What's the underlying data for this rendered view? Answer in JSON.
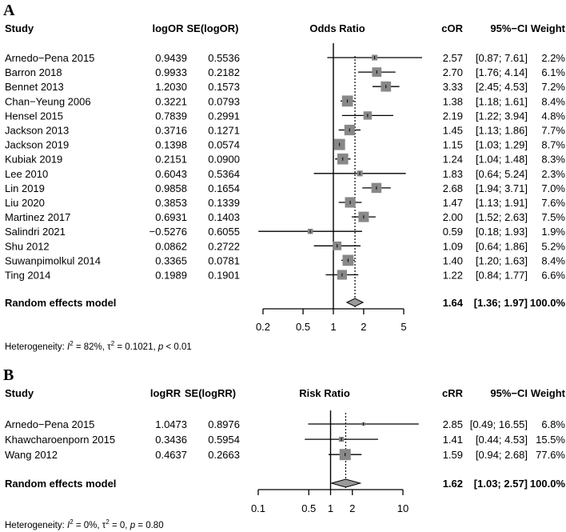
{
  "chart_data": [
    {
      "panel": "A",
      "type": "forest",
      "headers": {
        "study": "Study",
        "est": "logOR",
        "se": "SE(logOR)",
        "plot": "Odds Ratio",
        "ratio": "cOR",
        "ci": "95%−CI",
        "weight": "Weight"
      },
      "studies": [
        {
          "name": "Arnedo−Pena 2015",
          "est": "0.9439",
          "se": "0.5536",
          "ratio": 2.57,
          "lo": 0.87,
          "hi": 7.61,
          "ratio_text": "2.57",
          "ci_text": "[0.87; 7.61]",
          "weight": 2.2,
          "weight_text": "2.2%"
        },
        {
          "name": "Barron 2018",
          "est": "0.9933",
          "se": "0.2182",
          "ratio": 2.7,
          "lo": 1.76,
          "hi": 4.14,
          "ratio_text": "2.70",
          "ci_text": "[1.76; 4.14]",
          "weight": 6.1,
          "weight_text": "6.1%"
        },
        {
          "name": "Bennet 2013",
          "est": "1.2030",
          "se": "0.1573",
          "ratio": 3.33,
          "lo": 2.45,
          "hi": 4.53,
          "ratio_text": "3.33",
          "ci_text": "[2.45; 4.53]",
          "weight": 7.2,
          "weight_text": "7.2%"
        },
        {
          "name": "Chan−Yeung 2006",
          "est": "0.3221",
          "se": "0.0793",
          "ratio": 1.38,
          "lo": 1.18,
          "hi": 1.61,
          "ratio_text": "1.38",
          "ci_text": "[1.18; 1.61]",
          "weight": 8.4,
          "weight_text": "8.4%"
        },
        {
          "name": "Hensel 2015",
          "est": "0.7839",
          "se": "0.2991",
          "ratio": 2.19,
          "lo": 1.22,
          "hi": 3.94,
          "ratio_text": "2.19",
          "ci_text": "[1.22; 3.94]",
          "weight": 4.8,
          "weight_text": "4.8%"
        },
        {
          "name": "Jackson 2013",
          "est": "0.3716",
          "se": "0.1271",
          "ratio": 1.45,
          "lo": 1.13,
          "hi": 1.86,
          "ratio_text": "1.45",
          "ci_text": "[1.13; 1.86]",
          "weight": 7.7,
          "weight_text": "7.7%"
        },
        {
          "name": "Jackson 2019",
          "est": "0.1398",
          "se": "0.0574",
          "ratio": 1.15,
          "lo": 1.03,
          "hi": 1.29,
          "ratio_text": "1.15",
          "ci_text": "[1.03; 1.29]",
          "weight": 8.7,
          "weight_text": "8.7%"
        },
        {
          "name": "Kubiak 2019",
          "est": "0.2151",
          "se": "0.0900",
          "ratio": 1.24,
          "lo": 1.04,
          "hi": 1.48,
          "ratio_text": "1.24",
          "ci_text": "[1.04; 1.48]",
          "weight": 8.3,
          "weight_text": "8.3%"
        },
        {
          "name": "Lee 2010",
          "est": "0.6043",
          "se": "0.5364",
          "ratio": 1.83,
          "lo": 0.64,
          "hi": 5.24,
          "ratio_text": "1.83",
          "ci_text": "[0.64; 5.24]",
          "weight": 2.3,
          "weight_text": "2.3%"
        },
        {
          "name": "Lin 2019",
          "est": "0.9858",
          "se": "0.1654",
          "ratio": 2.68,
          "lo": 1.94,
          "hi": 3.71,
          "ratio_text": "2.68",
          "ci_text": "[1.94; 3.71]",
          "weight": 7.0,
          "weight_text": "7.0%"
        },
        {
          "name": "Liu 2020",
          "est": "0.3853",
          "se": "0.1339",
          "ratio": 1.47,
          "lo": 1.13,
          "hi": 1.91,
          "ratio_text": "1.47",
          "ci_text": "[1.13; 1.91]",
          "weight": 7.6,
          "weight_text": "7.6%"
        },
        {
          "name": "Martinez 2017",
          "est": "0.6931",
          "se": "0.1403",
          "ratio": 2.0,
          "lo": 1.52,
          "hi": 2.63,
          "ratio_text": "2.00",
          "ci_text": "[1.52; 2.63]",
          "weight": 7.5,
          "weight_text": "7.5%"
        },
        {
          "name": "Salindri 2021",
          "est": "−0.5276",
          "se": "0.6055",
          "ratio": 0.59,
          "lo": 0.18,
          "hi": 1.93,
          "ratio_text": "0.59",
          "ci_text": "[0.18; 1.93]",
          "weight": 1.9,
          "weight_text": "1.9%"
        },
        {
          "name": "Shu 2012",
          "est": "0.0862",
          "se": "0.2722",
          "ratio": 1.09,
          "lo": 0.64,
          "hi": 1.86,
          "ratio_text": "1.09",
          "ci_text": "[0.64; 1.86]",
          "weight": 5.2,
          "weight_text": "5.2%"
        },
        {
          "name": "Suwanpimolkul 2014",
          "est": "0.3365",
          "se": "0.0781",
          "ratio": 1.4,
          "lo": 1.2,
          "hi": 1.63,
          "ratio_text": "1.40",
          "ci_text": "[1.20; 1.63]",
          "weight": 8.4,
          "weight_text": "8.4%"
        },
        {
          "name": "Ting 2014",
          "est": "0.1989",
          "se": "0.1901",
          "ratio": 1.22,
          "lo": 0.84,
          "hi": 1.77,
          "ratio_text": "1.22",
          "ci_text": "[0.84; 1.77]",
          "weight": 6.6,
          "weight_text": "6.6%"
        }
      ],
      "pooled": {
        "label": "Random effects model",
        "ratio": 1.64,
        "lo": 1.36,
        "hi": 1.97,
        "ratio_text": "1.64",
        "ci_text": "[1.36; 1.97]",
        "weight_text": "100.0%"
      },
      "axis": {
        "scale": "log",
        "ticks": [
          0.2,
          0.5,
          1,
          2,
          5
        ],
        "tick_labels": [
          "0.2",
          "0.5",
          "1",
          "2",
          "5"
        ],
        "xlim": [
          0.2,
          5
        ],
        "null_value": 1
      },
      "heterogeneity": {
        "prefix": "Heterogeneity: ",
        "i2": "82%",
        "tau2": "0.1021",
        "p": "< 0.01"
      }
    },
    {
      "panel": "B",
      "type": "forest",
      "headers": {
        "study": "Study",
        "est": "logRR",
        "se": "SE(logRR)",
        "plot": "Risk Ratio",
        "ratio": "cRR",
        "ci": "95%−CI",
        "weight": "Weight"
      },
      "studies": [
        {
          "name": "Arnedo−Pena 2015",
          "est": "1.0473",
          "se": "0.8976",
          "ratio": 2.85,
          "lo": 0.49,
          "hi": 16.55,
          "ratio_text": "2.85",
          "ci_text": "[0.49; 16.55]",
          "weight": 6.8,
          "weight_text": "6.8%"
        },
        {
          "name": "Khawcharoenporn 2015",
          "est": "0.3436",
          "se": "0.5954",
          "ratio": 1.41,
          "lo": 0.44,
          "hi": 4.53,
          "ratio_text": "1.41",
          "ci_text": "[0.44; 4.53]",
          "weight": 15.5,
          "weight_text": "15.5%"
        },
        {
          "name": "Wang 2012",
          "est": "0.4637",
          "se": "0.2663",
          "ratio": 1.59,
          "lo": 0.94,
          "hi": 2.68,
          "ratio_text": "1.59",
          "ci_text": "[0.94; 2.68]",
          "weight": 77.6,
          "weight_text": "77.6%"
        }
      ],
      "pooled": {
        "label": "Random effects model",
        "ratio": 1.62,
        "lo": 1.03,
        "hi": 2.57,
        "ratio_text": "1.62",
        "ci_text": "[1.03; 2.57]",
        "weight_text": "100.0%"
      },
      "axis": {
        "scale": "log",
        "ticks": [
          0.1,
          0.5,
          1,
          2,
          10
        ],
        "tick_labels": [
          "0.1",
          "0.5",
          "1",
          "2",
          "10"
        ],
        "xlim": [
          0.1,
          10
        ],
        "null_value": 1
      },
      "heterogeneity": {
        "prefix": "Heterogeneity: ",
        "i2": "0%",
        "tau2": "0",
        "p": "0.80"
      }
    }
  ],
  "colors": {
    "square": "#888888",
    "line": "#000000",
    "diamond": "#999999"
  }
}
